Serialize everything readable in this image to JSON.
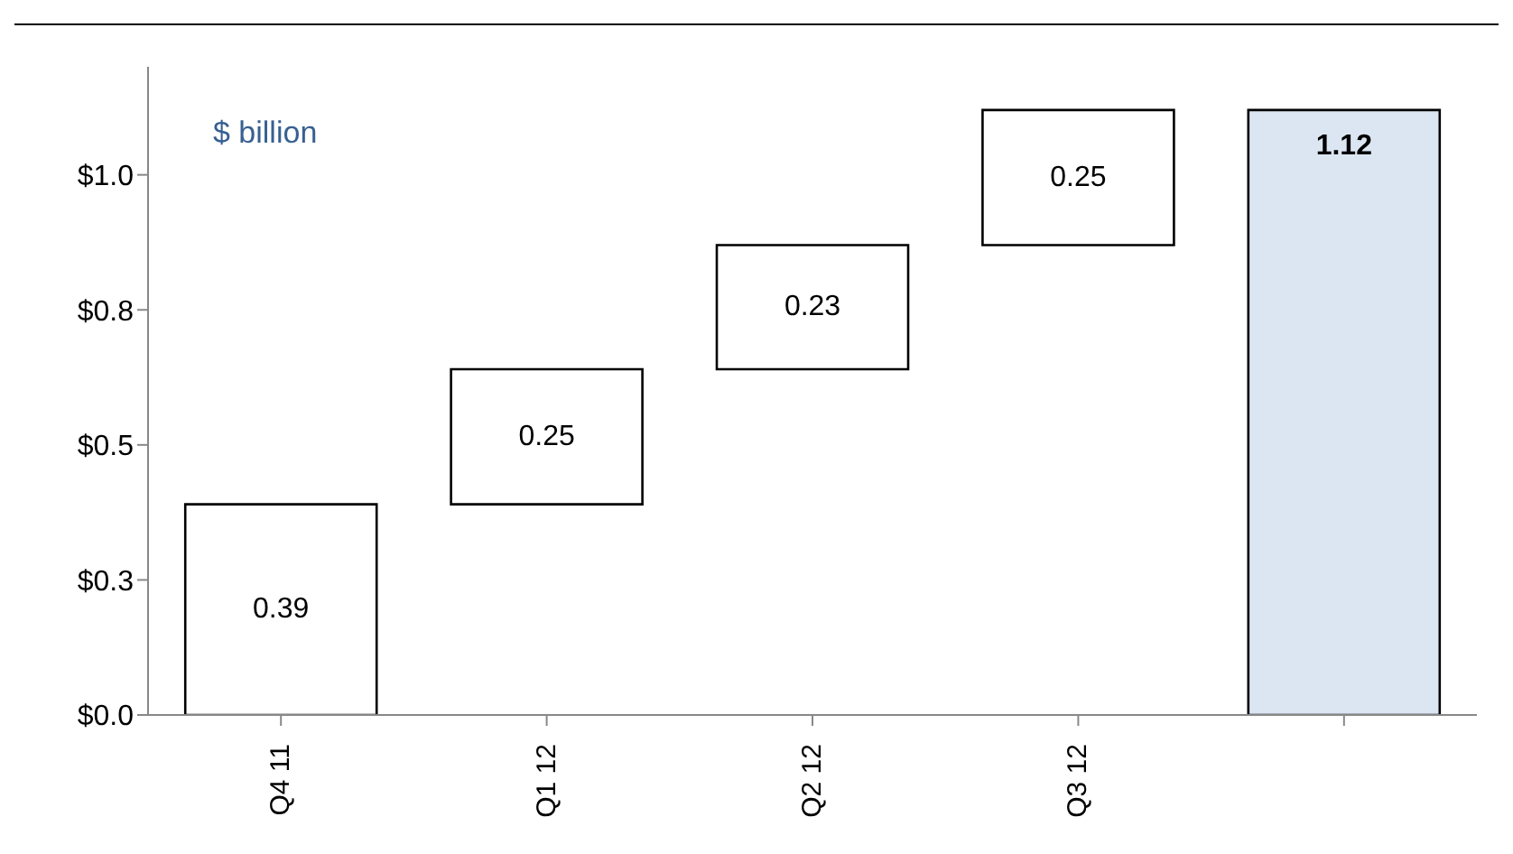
{
  "chart_data": {
    "type": "bar",
    "categories": [
      "Q4 11",
      "Q1 12",
      "Q2 12",
      "Q3 12",
      null
    ],
    "values": [
      0.39,
      0.25,
      0.23,
      0.25,
      1.12
    ],
    "base": [
      0,
      0.39,
      0.64,
      0.87,
      0
    ],
    "colors": [
      "#ffffff",
      "#ffffff",
      "#ffffff",
      "#ffffff",
      "#dce6f2"
    ],
    "data_labels": true,
    "ylim": [
      0,
      1.2
    ],
    "yticks": [
      {
        "value": 0,
        "label": "$0.0"
      },
      {
        "value": 0.25,
        "label": "$0.3"
      },
      {
        "value": 0.5,
        "label": "$0.5"
      },
      {
        "value": 0.75,
        "label": "$0.8"
      },
      {
        "value": 1,
        "label": "$1.0"
      }
    ],
    "annotations": [
      "$ billion"
    ],
    "grid": false,
    "legend": false
  }
}
